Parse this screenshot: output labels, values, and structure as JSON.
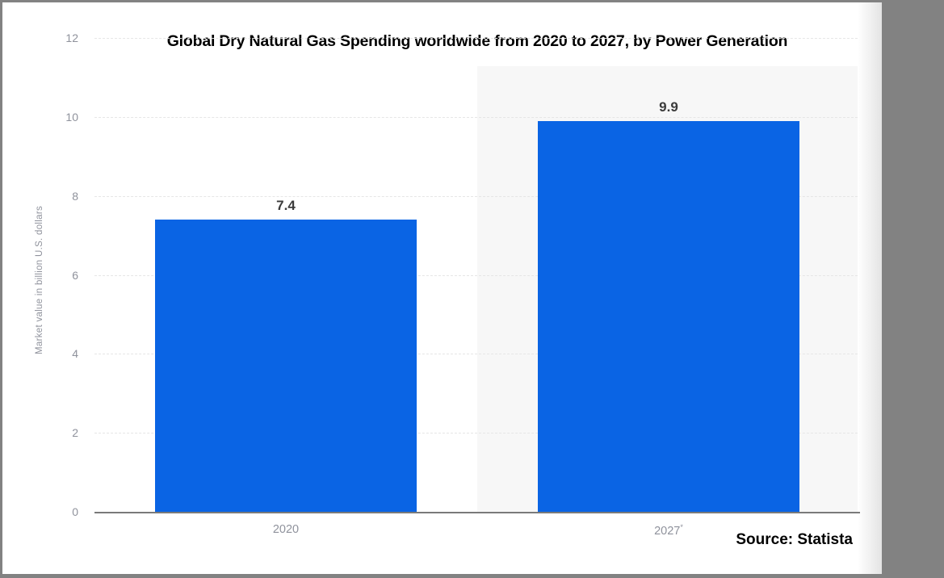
{
  "frame": {
    "surround_color": "#828282",
    "canvas_color": "#ffffff"
  },
  "chart_data": {
    "type": "bar",
    "title": "Global Dry Natural Gas Spending worldwide from 2020 to 2027, by Power Generation",
    "xlabel": "",
    "ylabel": "Market value in billion U.S. dollars",
    "categories": [
      "2020",
      "2027*"
    ],
    "category_parts": [
      {
        "base": "2020",
        "sup": ""
      },
      {
        "base": "2027",
        "sup": "*"
      }
    ],
    "values": [
      7.4,
      9.9
    ],
    "value_labels": [
      "7.4",
      "9.9"
    ],
    "ylim": [
      0,
      12
    ],
    "yticks": [
      0,
      2,
      4,
      6,
      8,
      10,
      12
    ],
    "grid": "horizontal-dashed",
    "legend": "none",
    "bar_color": "#0a64e4",
    "highlight_band_color": "#f7f7f7",
    "highlighted_category_index": 1,
    "tick_text_color": "#8f929c",
    "gridline_color": "#e6e6e6",
    "axis_line_color": "#7a7a7a",
    "value_label_color": "#3b3b3b"
  },
  "source": {
    "label": "Source: Statista"
  }
}
